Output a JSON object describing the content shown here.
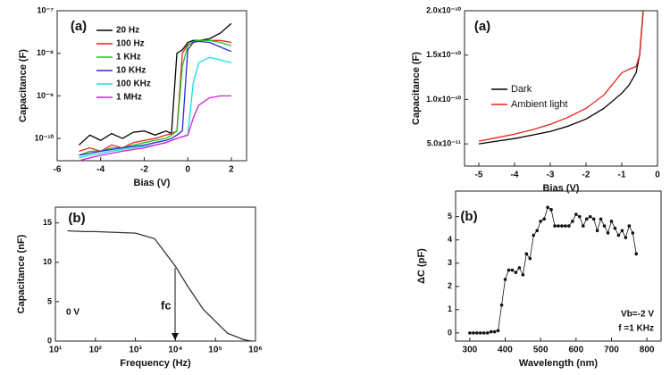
{
  "chart_data": [
    {
      "type": "line",
      "panel_label": "(a)",
      "xlabel": "Bias (V)",
      "ylabel": "Capacitance (F)",
      "xlim": [
        -6,
        2.7
      ],
      "xticks": [
        -6,
        -4,
        -2,
        0,
        2
      ],
      "yscale": "log",
      "ylim": [
        3e-11,
        1e-07
      ],
      "yticks": [
        {
          "value": 1e-10,
          "label": "10⁻¹⁰"
        },
        {
          "value": 1e-09,
          "label": "10⁻⁹"
        },
        {
          "value": 1e-08,
          "label": "10⁻⁸"
        },
        {
          "value": 1e-07,
          "label": "10⁻⁷"
        }
      ],
      "legend": "upper left",
      "x": [
        -5,
        -4.5,
        -4,
        -3.5,
        -3,
        -2.5,
        -2,
        -1.5,
        -1,
        -0.75,
        -0.5,
        -0.25,
        0,
        0.25,
        0.5,
        1,
        1.5,
        2
      ],
      "series": [
        {
          "name": "20 Hz",
          "color": "#000000",
          "values": [
            7e-11,
            1.2e-10,
            9e-11,
            1.3e-10,
            1e-10,
            1.4e-10,
            1.5e-10,
            1.2e-10,
            1.5e-10,
            1.3e-10,
            1e-08,
            1.2e-08,
            1.8e-08,
            2e-08,
            2e-08,
            2.2e-08,
            3e-08,
            5e-08
          ]
        },
        {
          "name": "100 Hz",
          "color": "#e8231c",
          "values": [
            5e-11,
            6e-11,
            5e-11,
            7e-11,
            6e-11,
            8e-11,
            9e-11,
            1e-10,
            1.2e-10,
            1.3e-10,
            1.5e-10,
            1e-08,
            1.6e-08,
            1.8e-08,
            2e-08,
            2e-08,
            2e-08,
            1.8e-08
          ]
        },
        {
          "name": "1 KHz",
          "color": "#1fbf1f",
          "values": [
            4e-11,
            5e-11,
            5e-11,
            6e-11,
            6e-11,
            7e-11,
            8e-11,
            9e-11,
            1e-10,
            1.2e-10,
            1.5e-10,
            5e-09,
            1.5e-08,
            1.9e-08,
            2e-08,
            2e-08,
            1.8e-08,
            1.5e-08
          ]
        },
        {
          "name": "10 KHz",
          "color": "#2a2ad0",
          "values": [
            4e-11,
            4.5e-11,
            5e-11,
            5.5e-11,
            6e-11,
            6.5e-11,
            7e-11,
            8e-11,
            9e-11,
            1e-10,
            1.2e-10,
            1.5e-10,
            1.2e-08,
            1.8e-08,
            1.9e-08,
            1.8e-08,
            1.4e-08,
            1.1e-08
          ]
        },
        {
          "name": "100 KHz",
          "color": "#22d8e0",
          "values": [
            3.5e-11,
            4e-11,
            4.5e-11,
            5e-11,
            5.5e-11,
            6e-11,
            6.5e-11,
            7e-11,
            8e-11,
            9e-11,
            1e-10,
            1.1e-10,
            1.2e-10,
            2e-09,
            6e-09,
            8e-09,
            7e-09,
            6e-09
          ]
        },
        {
          "name": "1 MHz",
          "color": "#d81fd8",
          "values": [
            3e-11,
            3.5e-11,
            4e-11,
            4.5e-11,
            5e-11,
            5.5e-11,
            6e-11,
            7e-11,
            8e-11,
            9e-11,
            1e-10,
            1.1e-10,
            1.2e-10,
            3e-10,
            6e-10,
            9e-10,
            1e-09,
            1e-09
          ]
        }
      ]
    },
    {
      "type": "line",
      "panel_label": "(b)",
      "xlabel": "Frequency (Hz)",
      "ylabel": "Capacitance (nF)",
      "xscale": "log",
      "xlim": [
        10,
        1000000
      ],
      "xticks": [
        {
          "value": 10,
          "label": "10¹"
        },
        {
          "value": 100,
          "label": "10²"
        },
        {
          "value": 1000,
          "label": "10³"
        },
        {
          "value": 10000,
          "label": "10⁴"
        },
        {
          "value": 100000,
          "label": "10⁵"
        },
        {
          "value": 1000000,
          "label": "10⁶"
        }
      ],
      "ylim": [
        0,
        17
      ],
      "yticks": [
        0,
        5,
        10,
        15
      ],
      "annotations": [
        "0 V",
        "fc"
      ],
      "x": [
        20,
        50,
        100,
        300,
        1000,
        3000,
        10000,
        20000,
        50000,
        100000,
        200000,
        500000,
        800000
      ],
      "series": [
        {
          "color": "#333333",
          "values": [
            14,
            13.9,
            13.9,
            13.8,
            13.7,
            13,
            9.5,
            7,
            4,
            2.5,
            1,
            0.2,
            0
          ]
        }
      ]
    },
    {
      "type": "line",
      "panel_label": "(a)",
      "xlabel": "Bias (V)",
      "ylabel": "Capacitance (F)",
      "xlim": [
        -5.4,
        0
      ],
      "xticks": [
        -5,
        -4,
        -3,
        -2,
        -1,
        0
      ],
      "ylim": [
        2.5e-11,
        2e-10
      ],
      "yticks": [
        {
          "value": 5e-11,
          "label": "5.0x10⁻¹¹"
        },
        {
          "value": 1e-10,
          "label": "1.0x10⁻¹⁰"
        },
        {
          "value": 1.5e-10,
          "label": "1.5x10⁻¹⁰"
        },
        {
          "value": 2e-10,
          "label": "2.0x10⁻¹⁰"
        }
      ],
      "legend": "center left",
      "x": [
        -5,
        -4.5,
        -4,
        -3.5,
        -3,
        -2.5,
        -2,
        -1.5,
        -1,
        -0.8,
        -0.6,
        -0.5,
        -0.45,
        -0.4
      ],
      "series": [
        {
          "name": "Dark",
          "color": "#000000",
          "values": [
            5e-11,
            5.3e-11,
            5.6e-11,
            6e-11,
            6.4e-11,
            7e-11,
            7.8e-11,
            9e-11,
            1.07e-10,
            1.16e-10,
            1.3e-10,
            1.5e-10,
            1.75e-10,
            2e-10
          ]
        },
        {
          "name": "Ambient light",
          "color": "#e8231c",
          "values": [
            5.3e-11,
            5.7e-11,
            6.1e-11,
            6.6e-11,
            7.2e-11,
            8e-11,
            9e-11,
            1.05e-10,
            1.3e-10,
            1.34e-10,
            1.37e-10,
            1.5e-10,
            1.75e-10,
            2e-10
          ]
        }
      ]
    },
    {
      "type": "line",
      "markers": true,
      "panel_label": "(b)",
      "xlabel": "Wavelength (nm)",
      "ylabel": "ΔC (pF)",
      "xlim": [
        260,
        840
      ],
      "xticks": [
        300,
        400,
        500,
        600,
        700,
        800
      ],
      "ylim": [
        -0.35,
        6.1
      ],
      "yticks": [
        0,
        1,
        2,
        3,
        4,
        5
      ],
      "annotations": [
        "Vb=-2 V",
        "f =1 KHz"
      ],
      "x": [
        300,
        310,
        320,
        330,
        340,
        350,
        360,
        370,
        380,
        390,
        400,
        410,
        420,
        430,
        440,
        450,
        460,
        470,
        480,
        490,
        500,
        510,
        520,
        530,
        540,
        550,
        560,
        570,
        580,
        590,
        600,
        610,
        620,
        630,
        640,
        650,
        660,
        670,
        680,
        690,
        700,
        710,
        720,
        730,
        740,
        750,
        760,
        770
      ],
      "series": [
        {
          "color": "#111111",
          "values": [
            0,
            0,
            0,
            0,
            0,
            0,
            0.05,
            0.05,
            0.1,
            1.2,
            2.3,
            2.7,
            2.7,
            2.6,
            2.8,
            2.5,
            3.4,
            3.2,
            4.2,
            4.4,
            4.8,
            4.9,
            5.4,
            5.3,
            4.6,
            4.6,
            4.6,
            4.6,
            4.6,
            4.8,
            5.1,
            5.0,
            4.6,
            4.9,
            5.0,
            4.9,
            4.4,
            4.9,
            4.6,
            4.3,
            4.8,
            4.5,
            4.2,
            4.4,
            4.1,
            4.6,
            4.3,
            3.4
          ]
        }
      ]
    }
  ]
}
